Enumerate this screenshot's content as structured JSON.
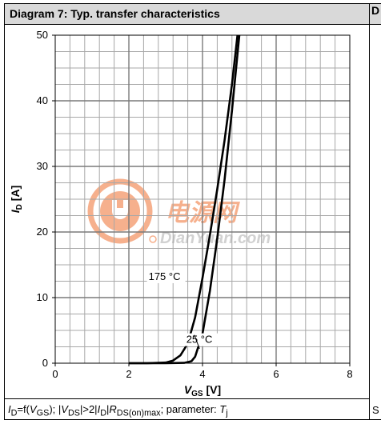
{
  "header": {
    "title": "Diagram 7: Typ. transfer characteristics"
  },
  "rail": {
    "header_char": "D",
    "footer_char": "S"
  },
  "footer": {
    "prefix": "I",
    "prefix_sub": "D",
    "part1": "=f(",
    "var1": "V",
    "var1_sub": "GS",
    "part2": "); |",
    "var2": "V",
    "var2_sub": "DS",
    "part3": "|>2|",
    "var3": "I",
    "var3_sub": "D",
    "part4": "|",
    "var4": "R",
    "var4_sub": "DS(on)max",
    "part5": "; parameter: ",
    "var5": "T",
    "var5_sub": "j"
  },
  "watermark": {
    "cn": "电源网",
    "en": "DianYuan.com",
    "brand_color": "#f5a37a"
  },
  "chart_data": {
    "type": "line",
    "title": "",
    "xlabel_main": "V",
    "xlabel_sub": "GS",
    "xlabel_unit": " [V]",
    "ylabel_main": "I",
    "ylabel_sub": "D",
    "ylabel_unit": " [A]",
    "xlim": [
      0,
      8
    ],
    "ylim": [
      0,
      50
    ],
    "x_ticks": [
      "0",
      "2",
      "4",
      "6",
      "8"
    ],
    "y_ticks": [
      "0",
      "10",
      "20",
      "30",
      "40",
      "50"
    ],
    "x_minor_step": 0.4,
    "y_minor_step": 2.5,
    "grid": true,
    "series": [
      {
        "name": "175 °C",
        "x": [
          2.0,
          2.5,
          3.0,
          3.2,
          3.4,
          3.6,
          3.8,
          4.0,
          4.2,
          4.4,
          4.6,
          4.8,
          4.95
        ],
        "y": [
          0,
          0,
          0.1,
          0.4,
          1.2,
          3.0,
          7.0,
          13.0,
          19.5,
          26.5,
          34.0,
          42.5,
          50
        ]
      },
      {
        "name": "25 °C",
        "x": [
          2.0,
          3.0,
          3.5,
          3.7,
          3.8,
          4.0,
          4.2,
          4.4,
          4.6,
          4.8,
          5.0
        ],
        "y": [
          0,
          0,
          0.05,
          0.3,
          1.0,
          4.5,
          11.0,
          19.0,
          28.0,
          38.5,
          50
        ]
      }
    ]
  }
}
